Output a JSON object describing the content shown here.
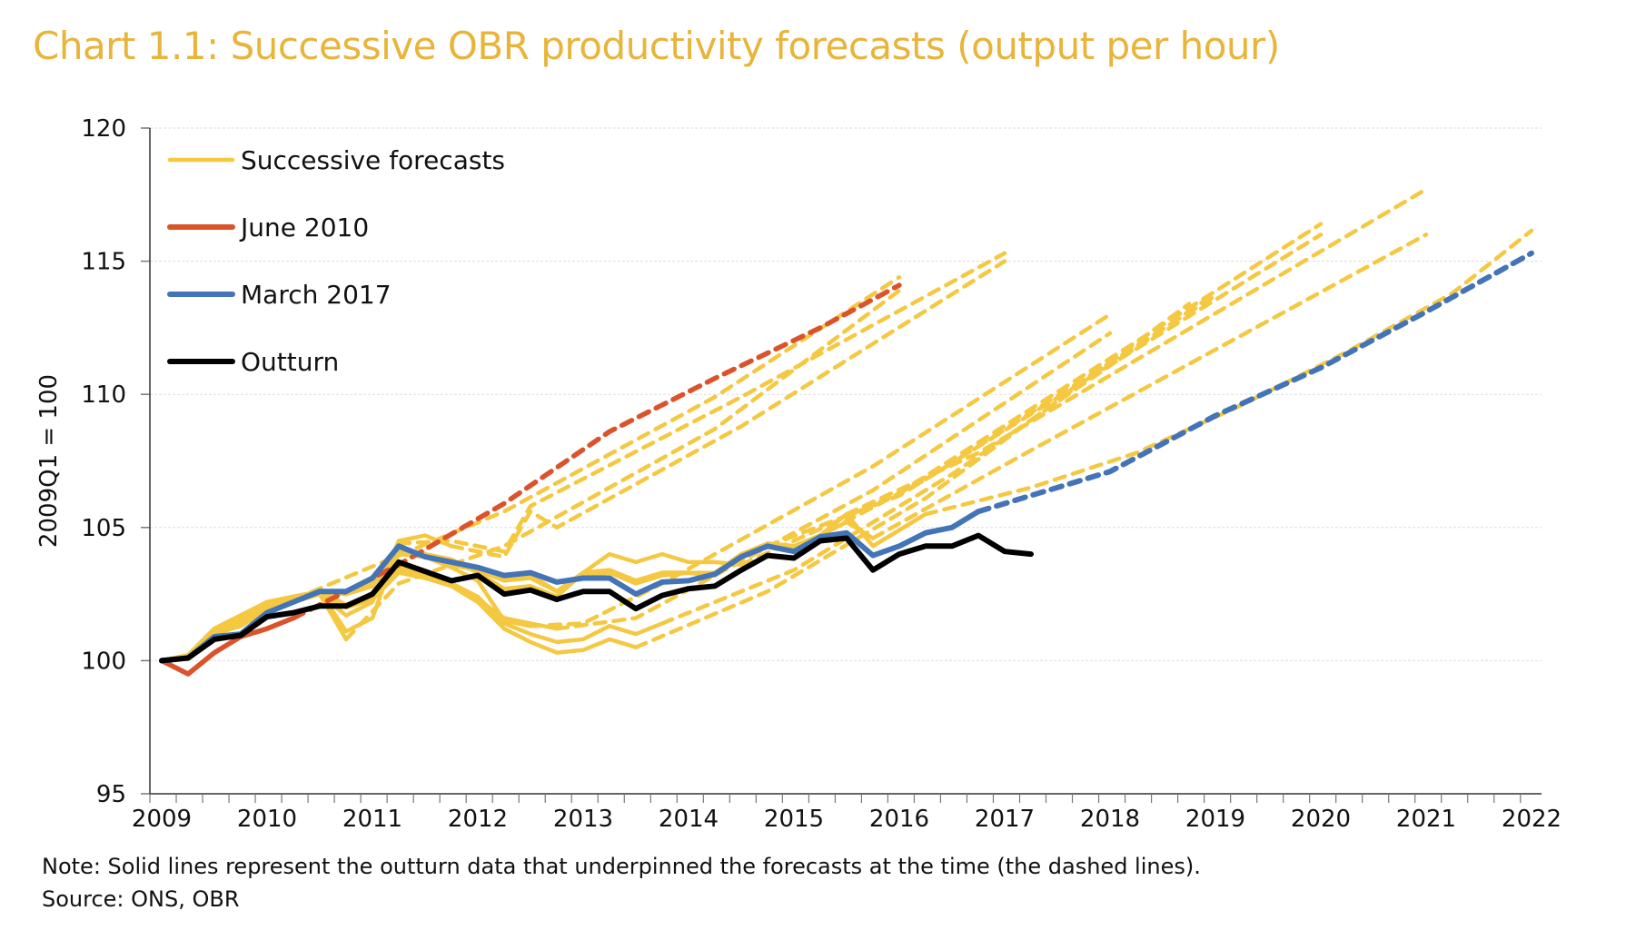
{
  "chart_data": {
    "type": "line",
    "title": "Chart 1.1: Successive OBR productivity forecasts (output per hour)",
    "ylabel": "2009Q1 = 100",
    "xlabel": "",
    "ylim": [
      95,
      120
    ],
    "yticks": [
      95,
      100,
      105,
      110,
      115,
      120
    ],
    "xlim": [
      "2009Q1",
      "2022Q1"
    ],
    "xticks": [
      "2009",
      "2010",
      "2011",
      "2012",
      "2013",
      "2014",
      "2015",
      "2016",
      "2017",
      "2018",
      "2019",
      "2020",
      "2021",
      "2022"
    ],
    "x_start": "2009Q1",
    "grid": "horizontal",
    "legend_position": "top-left",
    "note": "Note: Solid lines represent the outturn data that underpinned the forecasts at the time (the dashed lines).",
    "source": "Source: ONS, OBR",
    "colors": {
      "title": "#E8B43A",
      "forecasts": "#F5C842",
      "june2010": "#D9532B",
      "march2017": "#4374B7",
      "outturn": "#000000"
    },
    "legend": [
      {
        "label": "Successive forecasts",
        "color": "#F5C842"
      },
      {
        "label": "June 2010",
        "color": "#D9532B"
      },
      {
        "label": "March 2017",
        "color": "#4374B7"
      },
      {
        "label": "Outturn",
        "color": "#000000"
      }
    ],
    "successive_forecasts": [
      {
        "history": [
          100,
          100.2,
          101.2,
          101.6,
          102.2,
          102.3
        ],
        "forecast": [
          [
            "2010Q2",
            102.3
          ],
          [
            "2012Q2",
            105.6
          ],
          [
            "2014Q2",
            109.9
          ],
          [
            "2016Q1",
            114.4
          ]
        ]
      },
      {
        "history": [
          100,
          100.1,
          101.0,
          101.3,
          101.9,
          102.2,
          102.5,
          100.8
        ],
        "forecast": [
          [
            "2010Q4",
            100.8
          ],
          [
            "2011Q2",
            102.9
          ],
          [
            "2012Q2",
            104.3
          ],
          [
            "2014Q2",
            108.7
          ],
          [
            "2016Q1",
            113.9
          ]
        ]
      },
      {
        "history": [
          100,
          100.1,
          101.1,
          101.5,
          102.0,
          102.3,
          102.6,
          101.1,
          101.6,
          104.4
        ],
        "forecast": [
          [
            "2011Q2",
            104.4
          ],
          [
            "2011Q4",
            104.5
          ],
          [
            "2012Q2",
            104.1
          ],
          [
            "2012Q3",
            105.8
          ],
          [
            "2014Q3",
            109.9
          ],
          [
            "2017Q1",
            115.3
          ]
        ]
      },
      {
        "history": [
          100,
          100.1,
          101.0,
          101.4,
          102.0,
          102.2,
          102.5,
          101.7,
          102.2,
          104.5,
          104.7,
          104.3
        ],
        "forecast": [
          [
            "2011Q4",
            104.3
          ],
          [
            "2012Q2",
            103.9
          ],
          [
            "2012Q3",
            105.6
          ],
          [
            "2012Q4",
            105.0
          ],
          [
            "2014Q3",
            108.8
          ],
          [
            "2017Q1",
            115.0
          ]
        ]
      },
      {
        "history": [
          100,
          100.1,
          101.1,
          101.6,
          102.1,
          102.3,
          102.6,
          102.0,
          102.4,
          104.0,
          103.9,
          103.5,
          103.0,
          101.5,
          101.3
        ],
        "forecast": [
          [
            "2012Q3",
            101.3
          ],
          [
            "2013Q1",
            101.4
          ],
          [
            "2013Q4",
            102.9
          ],
          [
            "2015Q4",
            107.3
          ],
          [
            "2018Q1",
            113.0
          ]
        ]
      },
      {
        "history": [
          100,
          100.1,
          101.0,
          101.5,
          102.0,
          102.3,
          102.6,
          102.0,
          102.3,
          103.5,
          103.3,
          102.9,
          102.3,
          101.6,
          101.4,
          101.2
        ],
        "forecast": [
          [
            "2012Q4",
            101.2
          ],
          [
            "2013Q3",
            101.6
          ],
          [
            "2015Q4",
            106.4
          ],
          [
            "2018Q1",
            112.3
          ]
        ]
      },
      {
        "history": [
          100,
          100.1,
          101.0,
          101.4,
          102.0,
          102.2,
          102.5,
          102.0,
          102.3,
          103.3,
          103.1,
          102.8,
          102.2,
          101.2,
          100.7,
          100.3,
          100.4,
          100.8,
          100.5
        ],
        "forecast": [
          [
            "2013Q3",
            100.5
          ],
          [
            "2014Q4",
            102.6
          ],
          [
            "2016Q2",
            106.1
          ],
          [
            "2018Q4",
            113.4
          ]
        ]
      },
      {
        "history": [
          100,
          100.1,
          101.0,
          101.4,
          102.0,
          102.3,
          102.6,
          102.1,
          102.4,
          103.4,
          103.2,
          102.9,
          102.4,
          101.4,
          101.0,
          100.7,
          100.8,
          101.3,
          101.0,
          101.4
        ],
        "forecast": [
          [
            "2013Q4",
            101.4
          ],
          [
            "2015Q1",
            103.4
          ],
          [
            "2016Q3",
            107.0
          ],
          [
            "2019Q1",
            113.8
          ]
        ]
      },
      {
        "history": [
          100,
          100.2,
          101.2,
          101.7,
          102.2,
          102.4,
          102.6,
          102.6,
          102.9,
          104.2,
          104.0,
          103.8,
          103.3,
          102.7,
          102.8,
          102.4,
          103.3,
          104.0,
          103.7,
          104.0,
          103.7,
          103.7,
          103.6
        ],
        "forecast": [
          [
            "2014Q3",
            103.6
          ],
          [
            "2016Q1",
            106.3
          ],
          [
            "2020Q1",
            116.4
          ]
        ]
      },
      {
        "history": [
          100,
          100.2,
          101.2,
          101.7,
          102.2,
          102.4,
          102.6,
          102.5,
          102.8,
          104.1,
          104.0,
          103.6,
          103.4,
          103.1,
          103.2,
          102.6,
          103.3,
          103.4,
          103.0,
          103.3,
          103.3,
          103.2,
          103.9,
          104.3
        ],
        "forecast": [
          [
            "2014Q4",
            104.3
          ],
          [
            "2016Q1",
            106.2
          ],
          [
            "2020Q1",
            116.0
          ]
        ]
      },
      {
        "history": [
          100,
          100.2,
          101.1,
          101.6,
          102.2,
          102.4,
          102.6,
          102.5,
          102.8,
          104.1,
          103.9,
          103.6,
          103.4,
          103.0,
          103.1,
          102.6,
          103.2,
          103.3,
          102.9,
          103.2,
          103.3,
          103.3,
          104.0,
          104.4,
          104.2
        ],
        "forecast": [
          [
            "2015Q1",
            104.2
          ],
          [
            "2016Q2",
            106.8
          ],
          [
            "2019Q1",
            113.7
          ]
        ]
      },
      {
        "history": [
          100,
          100.2,
          101.2,
          101.7,
          102.2,
          102.4,
          102.6,
          102.5,
          102.8,
          104.1,
          104.0,
          103.6,
          103.4,
          103.1,
          103.2,
          102.6,
          103.3,
          103.4,
          103.0,
          103.3,
          103.3,
          103.2,
          103.9,
          104.4,
          104.3,
          104.7,
          105.5
        ],
        "forecast": [
          [
            "2015Q3",
            105.5
          ],
          [
            "2016Q4",
            107.8
          ],
          [
            "2021Q1",
            117.7
          ]
        ]
      },
      {
        "history": [
          100,
          100.2,
          101.2,
          101.7,
          102.2,
          102.4,
          102.6,
          102.5,
          102.8,
          104.1,
          104.0,
          103.6,
          103.4,
          103.1,
          103.2,
          102.6,
          103.3,
          103.4,
          103.0,
          103.3,
          103.3,
          103.2,
          103.9,
          104.4,
          104.3,
          104.7,
          105.2,
          104.6
        ],
        "forecast": [
          [
            "2015Q4",
            104.6
          ],
          [
            "2017Q2",
            107.9
          ],
          [
            "2021Q1",
            116.0
          ]
        ]
      },
      {
        "history": [
          100,
          100.2,
          101.2,
          101.7,
          102.2,
          102.4,
          102.6,
          102.5,
          102.8,
          104.1,
          104.0,
          103.6,
          103.4,
          103.1,
          103.2,
          102.6,
          103.3,
          103.4,
          103.0,
          103.3,
          103.3,
          103.2,
          103.9,
          104.4,
          104.3,
          104.7,
          105.5,
          104.3,
          104.9,
          105.5
        ],
        "forecast": [
          [
            "2016Q2",
            105.5
          ],
          [
            "2017Q2",
            106.5
          ],
          [
            "2018Q2",
            107.8
          ],
          [
            "2019Q2",
            109.6
          ],
          [
            "2020Q2",
            111.6
          ],
          [
            "2021Q2",
            113.8
          ],
          [
            "2022Q1",
            116.15
          ]
        ]
      }
    ],
    "june_2010": {
      "history": [
        100,
        99.5,
        100.3,
        100.9,
        101.2,
        101.6
      ],
      "forecast": [
        [
          "2010Q2",
          101.6
        ],
        [
          "2011Q2",
          103.6
        ],
        [
          "2012Q2",
          105.9
        ],
        [
          "2013Q2",
          108.6
        ],
        [
          "2014Q2",
          110.6
        ],
        [
          "2015Q2",
          112.5
        ],
        [
          "2016Q1",
          114.1
        ]
      ]
    },
    "march_2017": {
      "history": [
        100,
        100.1,
        100.9,
        101.0,
        101.8,
        102.2,
        102.6,
        102.6,
        103.1,
        104.3,
        103.9,
        103.7,
        103.5,
        103.2,
        103.3,
        102.95,
        103.1,
        103.1,
        102.5,
        102.95,
        103.0,
        103.25,
        103.9,
        104.3,
        104.1,
        104.65,
        104.8,
        103.95,
        104.3,
        104.8,
        105.0,
        105.6
      ],
      "forecast": [
        [
          "2016Q4",
          105.6
        ],
        [
          "2017Q2",
          106.2
        ],
        [
          "2018Q1",
          107.1
        ],
        [
          "2019Q1",
          109.2
        ],
        [
          "2020Q1",
          111.0
        ],
        [
          "2021Q1",
          113.1
        ],
        [
          "2022Q1",
          115.3
        ]
      ]
    },
    "outturn": {
      "history": [
        100,
        100.1,
        100.8,
        100.95,
        101.65,
        101.8,
        102.05,
        102.05,
        102.5,
        103.7,
        103.35,
        103.0,
        103.2,
        102.5,
        102.65,
        102.3,
        102.6,
        102.6,
        101.95,
        102.45,
        102.7,
        102.8,
        103.4,
        103.95,
        103.85,
        104.5,
        104.6,
        103.4,
        104.0,
        104.3,
        104.3,
        104.7,
        104.1,
        104.0
      ]
    }
  }
}
